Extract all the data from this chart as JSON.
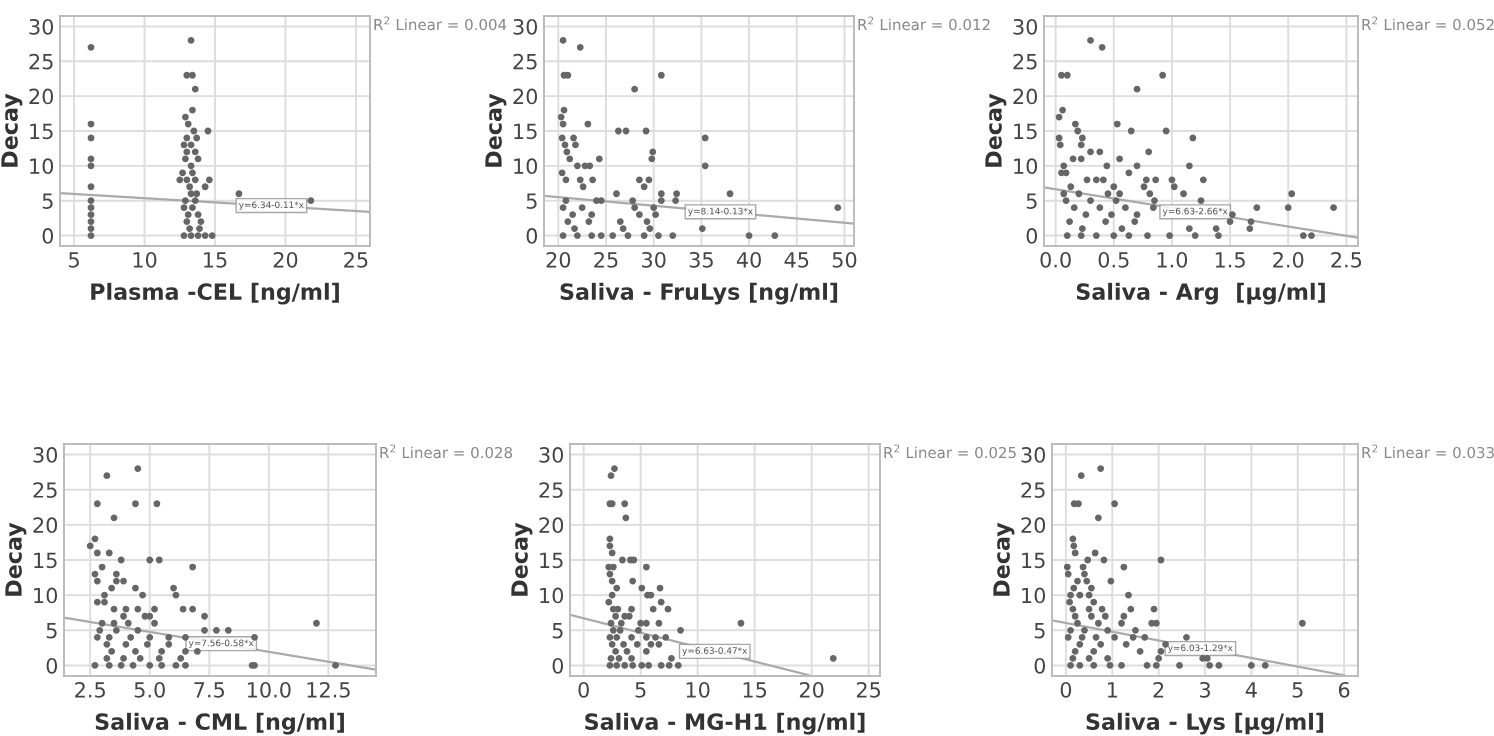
{
  "chart_data": [
    {
      "type": "scatter",
      "xlabel": "Plasma -CEL [ng/ml]",
      "ylabel": "Decay",
      "xlim": [
        4,
        26
      ],
      "xticks": [
        5,
        10,
        15,
        20,
        25
      ],
      "ylim": [
        -1.5,
        31.5
      ],
      "yticks": [
        0,
        5,
        10,
        15,
        20,
        25,
        30
      ],
      "grid": true,
      "marker": "circle",
      "annotations": [
        "R$^{2}$ Linear = 0.004",
        {
          "text": "y=6.34-0.11*x",
          "x": 19.0,
          "y": 4.3
        }
      ],
      "series": [
        {
          "type": "scatter",
          "color": "#666666",
          "x": [
            6.2,
            6.2,
            6.2,
            6.2,
            6.2,
            6.2,
            6.2,
            6.2,
            6.2,
            6.2,
            6.2,
            6.2,
            13.3,
            13.0,
            13.4,
            13.6,
            13.4,
            12.9,
            13.1,
            13.5,
            14.5,
            13.0,
            13.7,
            12.8,
            13.3,
            13.0,
            13.6,
            12.9,
            13.8,
            13.3,
            12.7,
            13.4,
            12.5,
            13.0,
            13.6,
            14.6,
            13.2,
            14.3,
            13.3,
            13.7,
            16.7,
            12.9,
            13.6,
            21.8,
            12.8,
            13.4,
            13.1,
            13.8,
            13.0,
            14.0,
            13.2,
            13.9,
            12.8,
            13.3,
            13.8,
            14.3,
            14.8
          ],
          "values": [
            27,
            16,
            14,
            11,
            10,
            7,
            5,
            4,
            3,
            2,
            1,
            0,
            28,
            23,
            23,
            21,
            18,
            17,
            16,
            15,
            15,
            14,
            14,
            13,
            13,
            12,
            12,
            11,
            11,
            10,
            9,
            9,
            8,
            8,
            8,
            8,
            7,
            7,
            6,
            6,
            6,
            5,
            5,
            5,
            4,
            4,
            3,
            3,
            2,
            2,
            1,
            1,
            0,
            0,
            0,
            0,
            0
          ]
        },
        {
          "type": "line",
          "color": "#aaaaaa",
          "marker": "none",
          "x": [
            4,
            26
          ],
          "values": [
            6.1,
            3.4
          ]
        }
      ]
    },
    {
      "type": "scatter",
      "xlabel": "Saliva - FruLys [ng/ml]",
      "ylabel": "Decay",
      "xlim": [
        18.5,
        51
      ],
      "xticks": [
        20,
        25,
        30,
        35,
        40,
        45,
        50
      ],
      "ylim": [
        -1.5,
        31.5
      ],
      "yticks": [
        0,
        5,
        10,
        15,
        20,
        25,
        30
      ],
      "grid": true,
      "marker": "circle",
      "annotations": [
        "R$^{2}$ Linear = 0.012",
        {
          "text": "y=8.14-0.13*x",
          "x": 37.0,
          "y": 3.4
        }
      ],
      "series": [
        {
          "type": "scatter",
          "color": "#666666",
          "x": [
            20.5,
            22.3,
            20.6,
            21.0,
            28.0,
            30.8,
            20.6,
            20.3,
            20.5,
            23.1,
            26.3,
            27.1,
            29.2,
            35.4,
            20.4,
            21.6,
            20.7,
            21.8,
            20.9,
            29.9,
            21.2,
            24.3,
            29.8,
            20.4,
            22.0,
            22.8,
            23.3,
            35.4,
            20.8,
            22.3,
            23.6,
            28.5,
            29.5,
            22.6,
            29.0,
            26.1,
            30.8,
            32.4,
            38.0,
            20.8,
            24.0,
            24.5,
            27.8,
            30.8,
            32.3,
            20.5,
            22.5,
            28.0,
            30.0,
            49.3,
            21.5,
            23.5,
            28.5,
            30.2,
            21.0,
            23.2,
            26.5,
            29.3,
            21.7,
            26.8,
            29.6,
            35.1,
            20.5,
            22.0,
            23.5,
            24.5,
            25.7,
            27.3,
            29.0,
            30.5,
            32.0,
            40.0,
            42.7
          ],
          "values": [
            28,
            27,
            23,
            23,
            21,
            23,
            18,
            17,
            16,
            16,
            15,
            15,
            15,
            14,
            14,
            14,
            13,
            13,
            12,
            12,
            11,
            11,
            11,
            9,
            10,
            10,
            10,
            10,
            8,
            8,
            8,
            8,
            8,
            7,
            7,
            6,
            6,
            6,
            6,
            5,
            5,
            5,
            5,
            5,
            5,
            4,
            4,
            4,
            4,
            4,
            3,
            3,
            3,
            3,
            2,
            2,
            2,
            2,
            1,
            1,
            1,
            1,
            0,
            0,
            0,
            0,
            0,
            0,
            0,
            0,
            0,
            0,
            0
          ]
        },
        {
          "type": "line",
          "color": "#aaaaaa",
          "marker": "none",
          "x": [
            18.5,
            51
          ],
          "values": [
            5.7,
            1.7
          ]
        }
      ]
    },
    {
      "type": "scatter",
      "xlabel": "Saliva - Arg  [µg/ml]",
      "ylabel": "Decay",
      "xlim": [
        -0.1,
        2.6
      ],
      "xticks": [
        {
          "value": 0,
          "label": "0.0"
        },
        {
          "value": 0.5,
          "label": "0.5"
        },
        {
          "value": 1,
          "label": "1.0"
        },
        {
          "value": 1.5,
          "label": "1.5"
        },
        {
          "value": 2,
          "label": "2.0"
        },
        {
          "value": 2.5,
          "label": "2.5"
        }
      ],
      "ylim": [
        -1.5,
        31.5
      ],
      "yticks": [
        0,
        5,
        10,
        15,
        20,
        25,
        30
      ],
      "grid": true,
      "marker": "circle",
      "annotations": [
        "R$^{2}$ Linear = 0.052",
        {
          "text": "y=6.63-2.66*x",
          "x": 1.2,
          "y": 3.4
        }
      ],
      "series": [
        {
          "type": "scatter",
          "color": "#666666",
          "x": [
            0.3,
            0.4,
            0.05,
            0.1,
            0.92,
            0.7,
            0.06,
            0.03,
            0.17,
            0.53,
            0.19,
            0.65,
            0.95,
            0.03,
            0.23,
            1.18,
            0.04,
            0.22,
            0.3,
            0.38,
            0.8,
            0.15,
            0.22,
            0.55,
            0.07,
            0.44,
            0.7,
            1.15,
            0.05,
            0.09,
            0.63,
            0.27,
            0.35,
            0.41,
            0.78,
            0.86,
            1.0,
            1.27,
            0.13,
            0.5,
            0.76,
            1.02,
            0.07,
            0.2,
            0.45,
            0.55,
            0.81,
            1.1,
            2.03,
            0.09,
            0.3,
            0.52,
            0.85,
            1.25,
            0.16,
            0.38,
            0.6,
            0.84,
            1.73,
            2.0,
            2.39,
            0.26,
            0.48,
            0.7,
            1.52,
            0.12,
            0.43,
            0.68,
            1.5,
            1.68,
            0.23,
            0.57,
            1.15,
            1.38,
            1.67,
            0.1,
            0.22,
            0.35,
            0.5,
            0.63,
            0.79,
            0.98,
            1.2,
            1.4,
            2.13,
            2.2
          ],
          "values": [
            28,
            27,
            23,
            23,
            23,
            21,
            18,
            17,
            16,
            16,
            15,
            15,
            15,
            14,
            14,
            14,
            13,
            13,
            12,
            12,
            12,
            11,
            11,
            11,
            10,
            10,
            10,
            10,
            9,
            9,
            9,
            8,
            8,
            8,
            8,
            8,
            8,
            8,
            7,
            7,
            7,
            7,
            6,
            6,
            6,
            6,
            6,
            6,
            6,
            5,
            5,
            5,
            5,
            5,
            4,
            4,
            4,
            4,
            4,
            4,
            4,
            3,
            3,
            3,
            3,
            2,
            2,
            2,
            2,
            2,
            1,
            1,
            1,
            1,
            1,
            0,
            0,
            0,
            0,
            0,
            0,
            0,
            0,
            0,
            0,
            0
          ]
        },
        {
          "type": "line",
          "color": "#aaaaaa",
          "marker": "none",
          "x": [
            -0.1,
            2.6
          ],
          "values": [
            6.9,
            -0.3
          ]
        }
      ]
    },
    {
      "type": "scatter",
      "xlabel": "Saliva - CML [ng/ml]",
      "ylabel": "Decay",
      "xlim": [
        1.4,
        14.5
      ],
      "xticks": [
        {
          "value": 2.5,
          "label": "2.5"
        },
        {
          "value": 5,
          "label": "5.0"
        },
        {
          "value": 7.5,
          "label": "7.5"
        },
        {
          "value": 10,
          "label": "10.0"
        },
        {
          "value": 12.5,
          "label": "12.5"
        }
      ],
      "ylim": [
        -1.5,
        31.5
      ],
      "yticks": [
        0,
        5,
        10,
        15,
        20,
        25,
        30
      ],
      "grid": true,
      "marker": "circle",
      "annotations": [
        "R$^{2}$ Linear = 0.028",
        {
          "text": "y=7.56-0.58*x",
          "x": 8.0,
          "y": 3.1
        }
      ],
      "series": [
        {
          "type": "scatter",
          "color": "#666666",
          "x": [
            4.5,
            3.2,
            2.8,
            4.4,
            5.3,
            3.5,
            2.7,
            2.5,
            2.8,
            3.3,
            3.8,
            5.0,
            5.4,
            3.0,
            6.8,
            2.7,
            3.6,
            2.8,
            3.6,
            3.9,
            3.4,
            4.4,
            6.0,
            3.1,
            4.7,
            6.1,
            2.8,
            3.1,
            3.5,
            4.0,
            4.5,
            5.2,
            6.4,
            6.8,
            3.9,
            4.8,
            5.0,
            7.3,
            3.0,
            3.5,
            4.1,
            5.2,
            12.0,
            2.9,
            3.6,
            4.5,
            7.3,
            7.8,
            8.3,
            2.8,
            3.3,
            4.2,
            5.0,
            5.8,
            6.5,
            9.4,
            3.2,
            4.0,
            4.9,
            5.8,
            3.4,
            4.4,
            5.5,
            6.5,
            7.0,
            3.2,
            3.9,
            4.6,
            5.4,
            6.3,
            2.7,
            3.3,
            3.8,
            4.3,
            5.0,
            5.5,
            6.1,
            6.5,
            9.3,
            9.4,
            12.8
          ],
          "values": [
            28,
            27,
            23,
            23,
            23,
            21,
            18,
            17,
            16,
            16,
            15,
            15,
            15,
            14,
            14,
            13,
            13,
            12,
            12,
            12,
            11,
            11,
            11,
            10,
            10,
            10,
            9,
            9,
            8,
            8,
            8,
            8,
            8,
            8,
            7,
            7,
            7,
            7,
            6,
            6,
            6,
            6,
            6,
            5,
            5,
            5,
            5,
            5,
            5,
            4,
            4,
            4,
            4,
            4,
            4,
            4,
            3,
            3,
            3,
            3,
            2,
            2,
            2,
            2,
            2,
            1,
            1,
            1,
            1,
            1,
            0,
            0,
            0,
            0,
            0,
            0,
            0,
            0,
            0,
            0,
            0
          ]
        },
        {
          "type": "line",
          "color": "#aaaaaa",
          "marker": "none",
          "x": [
            1.4,
            14.5
          ],
          "values": [
            6.8,
            -0.6
          ]
        }
      ]
    },
    {
      "type": "scatter",
      "xlabel": "Saliva - MG-H1 [ng/ml]",
      "ylabel": "Decay",
      "xlim": [
        -1.2,
        26
      ],
      "xticks": [
        0,
        5,
        10,
        15,
        20,
        25
      ],
      "ylim": [
        -1.5,
        31.5
      ],
      "yticks": [
        0,
        5,
        10,
        15,
        20,
        25,
        30
      ],
      "grid": true,
      "marker": "circle",
      "annotations": [
        "R$^{2}$ Linear = 0.025",
        {
          "text": "y=6.63-0.47*x",
          "x": 11.5,
          "y": 2.0
        }
      ],
      "series": [
        {
          "type": "scatter",
          "color": "#666666",
          "x": [
            2.7,
            2.4,
            2.3,
            2.5,
            3.6,
            3.7,
            2.3,
            2.3,
            2.5,
            3.4,
            4.1,
            4.4,
            5.5,
            2.2,
            2.6,
            2.3,
            2.5,
            4.3,
            2.9,
            5.1,
            6.7,
            2.5,
            5.6,
            5.9,
            2.2,
            6.8,
            2.6,
            3.0,
            4.2,
            6.1,
            7.4,
            2.8,
            3.6,
            4.0,
            2.4,
            3.3,
            5.0,
            5.5,
            6.6,
            13.8,
            2.6,
            3.2,
            4.8,
            8.5,
            2.3,
            2.9,
            4.2,
            5.5,
            6.3,
            7.2,
            2.5,
            3.5,
            4.7,
            5.9,
            6.6,
            2.8,
            3.8,
            5.5,
            2.4,
            3.1,
            4.2,
            7.7,
            21.9,
            2.3,
            2.9,
            3.6,
            4.3,
            5.1,
            5.7,
            6.8,
            7.5,
            8.3
          ],
          "values": [
            28,
            27,
            23,
            23,
            23,
            21,
            18,
            17,
            16,
            15,
            15,
            15,
            14,
            14,
            14,
            13,
            12,
            12,
            11,
            11,
            11,
            10,
            10,
            10,
            9,
            9,
            8,
            8,
            8,
            8,
            8,
            7,
            7,
            7,
            6,
            6,
            6,
            6,
            6,
            6,
            5,
            5,
            5,
            5,
            4,
            4,
            4,
            4,
            4,
            4,
            3,
            3,
            3,
            3,
            3,
            2,
            2,
            2,
            1,
            1,
            1,
            1,
            1,
            0,
            0,
            0,
            0,
            0,
            0,
            0,
            0,
            0
          ]
        },
        {
          "type": "line",
          "color": "#aaaaaa",
          "marker": "none",
          "x": [
            -1.2,
            19.8
          ],
          "values": [
            7.2,
            -1.4
          ]
        }
      ]
    },
    {
      "type": "scatter",
      "xlabel": "Saliva - Lys [µg/ml]",
      "ylabel": "Decay",
      "xlim": [
        -0.3,
        6.3
      ],
      "xticks": [
        0,
        1,
        2,
        3,
        4,
        5,
        6
      ],
      "ylim": [
        -1.5,
        31.5
      ],
      "yticks": [
        0,
        5,
        10,
        15,
        20,
        25,
        30
      ],
      "grid": true,
      "marker": "circle",
      "annotations": [
        "R$^{2}$ Linear = 0.033",
        {
          "text": "y=6.03-1.29*x",
          "x": 2.9,
          "y": 2.4
        }
      ],
      "series": [
        {
          "type": "scatter",
          "color": "#666666",
          "x": [
            0.75,
            0.33,
            0.18,
            0.27,
            1.05,
            0.7,
            0.15,
            0.17,
            0.2,
            0.63,
            0.47,
            0.82,
            2.05,
            0.03,
            0.37,
            1.25,
            0.05,
            0.4,
            0.25,
            0.45,
            0.97,
            0.17,
            0.55,
            0.1,
            0.3,
            0.5,
            1.35,
            0.08,
            0.6,
            0.15,
            0.5,
            0.78,
            1.4,
            1.9,
            0.2,
            0.55,
            0.85,
            1.25,
            0.25,
            0.7,
            1.2,
            1.85,
            1.95,
            5.1,
            0.1,
            0.4,
            0.9,
            1.5,
            0.05,
            0.35,
            0.65,
            1.05,
            1.45,
            1.7,
            2.6,
            0.3,
            0.75,
            1.3,
            2.15,
            0.2,
            0.6,
            1.6,
            2.05,
            0.15,
            0.5,
            0.9,
            2.0,
            2.95,
            3.05,
            0.1,
            0.3,
            0.6,
            0.95,
            1.2,
            1.75,
            1.95,
            2.45,
            3.1,
            3.3,
            4.0,
            4.3
          ],
          "values": [
            28,
            27,
            23,
            23,
            23,
            21,
            18,
            17,
            16,
            16,
            15,
            15,
            15,
            14,
            14,
            14,
            13,
            13,
            12,
            12,
            12,
            11,
            11,
            10,
            10,
            10,
            10,
            9,
            9,
            8,
            8,
            8,
            8,
            8,
            7,
            7,
            7,
            7,
            6,
            6,
            6,
            6,
            6,
            6,
            5,
            5,
            5,
            5,
            4,
            4,
            4,
            4,
            4,
            4,
            4,
            3,
            3,
            3,
            3,
            2,
            2,
            2,
            2,
            1,
            1,
            1,
            1,
            1,
            1,
            0,
            0,
            0,
            0,
            0,
            0,
            0,
            0,
            0,
            0,
            0,
            0
          ]
        },
        {
          "type": "line",
          "color": "#aaaaaa",
          "marker": "none",
          "x": [
            -0.3,
            6.0
          ],
          "values": [
            6.4,
            -1.4
          ]
        }
      ]
    }
  ]
}
